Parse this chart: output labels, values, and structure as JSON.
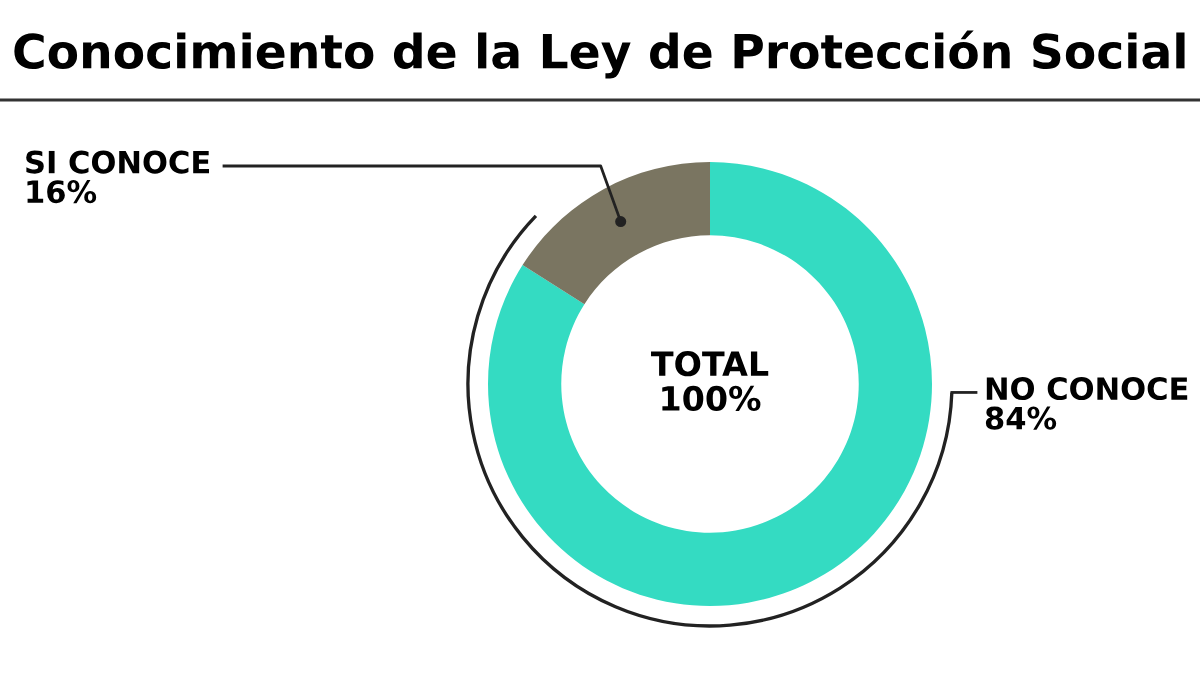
{
  "chart_data": {
    "type": "donut",
    "title": "Conocimiento de la Ley de Protección Social",
    "categories": [
      "NO CONOCE",
      "SI CONOCE"
    ],
    "values": [
      84,
      16
    ],
    "colors": [
      "#34dbc2",
      "#7a7561"
    ],
    "value_labels": [
      "84%",
      "16%"
    ],
    "annotations": [
      "TOTAL\n100%"
    ],
    "legend": false
  }
}
